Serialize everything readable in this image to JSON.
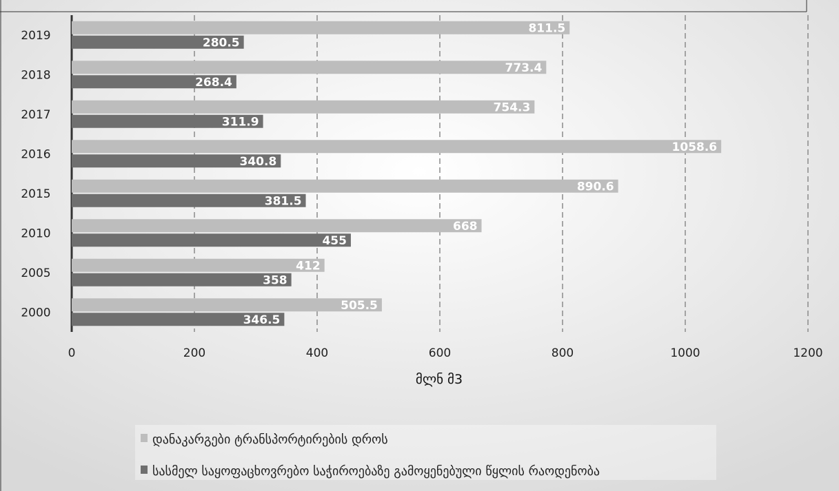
{
  "chart_data": {
    "type": "bar",
    "orientation": "horizontal",
    "categories": [
      "2000",
      "2005",
      "2010",
      "2015",
      "2016",
      "2017",
      "2018",
      "2019"
    ],
    "series": [
      {
        "name": "დანაკარგები ტრანსპორტირების დროს",
        "values": [
          505.5,
          412,
          668,
          890.6,
          1058.6,
          754.3,
          773.4,
          811.5
        ],
        "color": "#bdbdbd"
      },
      {
        "name": "სასმელ საყოფაცხოვრებო საჭიროებაზე გამოყენებული წყლის რაოდენობა",
        "values": [
          346.5,
          358,
          455,
          381.5,
          340.8,
          311.9,
          268.4,
          280.5
        ],
        "color": "#6f6f6f"
      }
    ],
    "xlabel": "მლნ მ3",
    "ylabel": "",
    "xlim": [
      0,
      1200
    ],
    "xticks": [
      "0",
      "200",
      "400",
      "600",
      "800",
      "1000",
      "1200"
    ],
    "grid": true,
    "legend_position": "bottom"
  }
}
